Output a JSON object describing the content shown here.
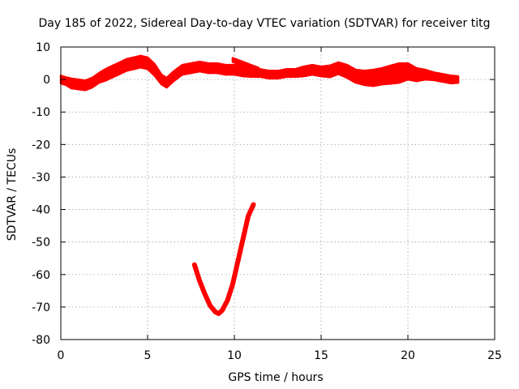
{
  "chart_data": {
    "type": "line",
    "title": "Day 185 of 2022, Sidereal Day-to-day VTEC variation (SDTVAR) for receiver titg",
    "xlabel": "GPS time / hours",
    "ylabel": "SDTVAR / TECUs",
    "xlim": [
      0,
      25
    ],
    "ylim": [
      -80,
      10
    ],
    "xticks": [
      0,
      5,
      10,
      15,
      20,
      25
    ],
    "yticks": [
      10,
      0,
      -10,
      -20,
      -30,
      -40,
      -50,
      -60,
      -70,
      -80
    ],
    "xtick_labels": [
      "0",
      "5",
      "10",
      "15",
      "20",
      "25"
    ],
    "ytick_labels": [
      "10",
      "0",
      "-10",
      "-20",
      "-30",
      "-40",
      "-50",
      "-60",
      "-70",
      "-80"
    ],
    "grid": true,
    "color": "#ff0000",
    "series": [
      {
        "name": "main-band",
        "band": true,
        "x": [
          0.0,
          0.3,
          0.6,
          1.0,
          1.4,
          1.8,
          2.2,
          2.6,
          3.0,
          3.4,
          3.8,
          4.2,
          4.6,
          5.0,
          5.4,
          5.8,
          6.1,
          6.5,
          7.0,
          7.5,
          8.0,
          8.5,
          9.0,
          9.5,
          10.0,
          10.5,
          11.0,
          11.5,
          12.0,
          12.5,
          13.0,
          13.5,
          14.0,
          14.5,
          15.0,
          15.5,
          16.0,
          16.5,
          17.0,
          17.5,
          18.0,
          18.5,
          19.0,
          19.5,
          20.0,
          20.5,
          21.0,
          21.5,
          22.0,
          22.5,
          22.9
        ],
        "y": [
          0.0,
          -0.5,
          -1.2,
          -1.5,
          -1.8,
          -1.0,
          0.5,
          1.5,
          2.5,
          3.5,
          4.5,
          5.0,
          5.5,
          5.0,
          3.0,
          0.0,
          -1.0,
          1.0,
          3.0,
          3.5,
          4.0,
          3.5,
          3.5,
          3.0,
          3.0,
          2.5,
          2.0,
          2.0,
          1.5,
          1.5,
          2.0,
          2.0,
          2.5,
          3.0,
          2.5,
          2.5,
          3.5,
          2.5,
          1.0,
          0.5,
          0.5,
          1.0,
          1.5,
          2.0,
          2.5,
          1.5,
          1.5,
          1.0,
          0.5,
          0.0,
          0.0
        ],
        "spread": [
          1.2,
          1.2,
          1.5,
          1.5,
          1.5,
          1.5,
          1.5,
          1.8,
          1.8,
          1.8,
          1.8,
          1.8,
          1.8,
          1.8,
          1.8,
          1.5,
          1.5,
          1.5,
          1.5,
          1.5,
          1.5,
          1.5,
          1.5,
          1.5,
          1.5,
          1.5,
          1.2,
          1.2,
          1.2,
          1.2,
          1.2,
          1.2,
          1.5,
          1.5,
          1.5,
          1.8,
          1.8,
          2.0,
          2.0,
          2.2,
          2.5,
          2.5,
          2.8,
          3.0,
          2.5,
          2.0,
          1.5,
          1.2,
          1.2,
          1.2,
          1.0
        ]
      },
      {
        "name": "upper-offshoot",
        "band": true,
        "x": [
          9.9,
          10.4,
          10.9,
          11.4
        ],
        "y": [
          6.0,
          5.0,
          4.0,
          3.0
        ],
        "spread": [
          0.6,
          0.6,
          0.6,
          0.6
        ]
      },
      {
        "name": "dip-curve",
        "band": false,
        "x": [
          7.7,
          8.0,
          8.3,
          8.6,
          8.9,
          9.1,
          9.3,
          9.6,
          9.9,
          10.2,
          10.5,
          10.8,
          11.1
        ],
        "y": [
          -57,
          -62,
          -66,
          -69.5,
          -71.5,
          -72,
          -71,
          -68,
          -63,
          -56,
          -49,
          -42,
          -38.5
        ]
      }
    ]
  }
}
